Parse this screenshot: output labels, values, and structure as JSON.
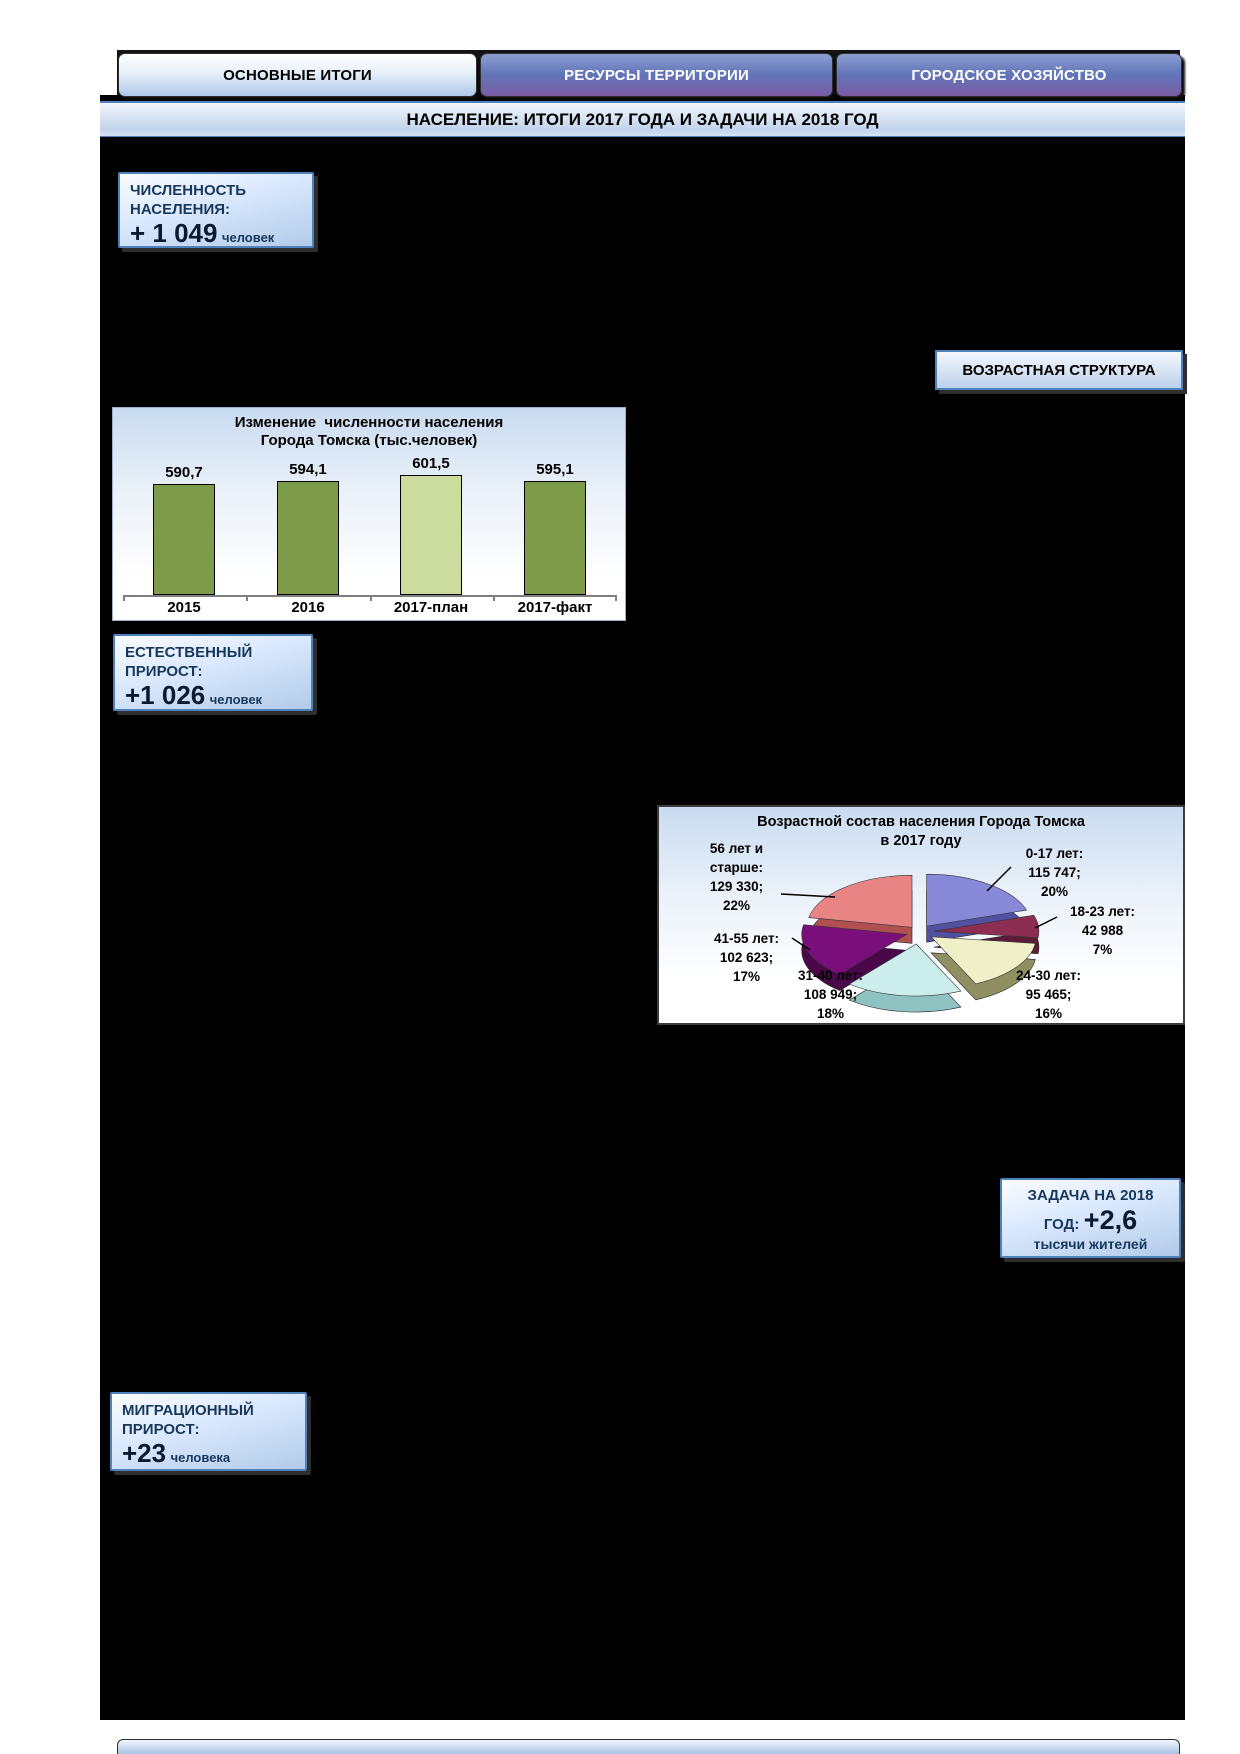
{
  "tabs": [
    {
      "label": "ОСНОВНЫЕ ИТОГИ",
      "active": true
    },
    {
      "label": "РЕСУРСЫ ТЕРРИТОРИИ",
      "active": false
    },
    {
      "label": "ГОРОДСКОЕ ХОЗЯЙСТВО",
      "active": false
    }
  ],
  "page_title": "НАСЕЛЕНИЕ: ИТОГИ 2017 ГОДА И ЗАДАЧИ НА 2018 ГОД",
  "section_label": "ВОЗРАСТНАЯ СТРУКТУРА",
  "callouts": {
    "population": {
      "heading": "ЧИСЛЕННОСТЬ НАСЕЛЕНИЯ:",
      "value": "+ 1 049",
      "unit": "человек"
    },
    "natural_growth": {
      "heading": "ЕСТЕСТВЕННЫЙ ПРИРОСТ:",
      "value": "+1 026",
      "unit": "человек"
    },
    "migration_growth": {
      "heading": "МИГРАЦИОННЫЙ ПРИРОСТ:",
      "value": "+23",
      "unit": "человека"
    },
    "task_2018": {
      "line1": "ЗАДАЧА НА 2018",
      "line2_prefix": "ГОД:",
      "line2_value": "+2,6",
      "line3": "тысячи жителей"
    }
  },
  "chart_data": [
    {
      "type": "bar",
      "title_line1": "Изменение  численности населения",
      "title_line2": "Города Томска (тыс.человек)",
      "categories": [
        "2015",
        "2016",
        "2017-план",
        "2017-факт"
      ],
      "values": [
        590.7,
        594.1,
        601.5,
        595.1
      ],
      "value_labels": [
        "590,7",
        "594,1",
        "601,5",
        "595,1"
      ],
      "bar_colors": [
        "#7E9B49",
        "#7E9B49",
        "#CBDC9E",
        "#7E9B49"
      ],
      "ylim": [
        460,
        610
      ],
      "grid": false,
      "legend": false
    },
    {
      "type": "pie",
      "title_line1": "Возрастной состав населения Города Томска",
      "title_line2": "в 2017 году",
      "start_angle_deg": -90,
      "direction": "clockwise",
      "slices": [
        {
          "label": "0-17 лет",
          "value": 115747,
          "pct": 20,
          "label_lines": [
            "0-17 лет:",
            "115 747;",
            "20%"
          ],
          "color": "#8888D8",
          "side_color": "#5151A2"
        },
        {
          "label": "18-23 лет",
          "value": 42988,
          "pct": 7,
          "label_lines": [
            "18-23 лет:",
            "42 988",
            "7%"
          ],
          "color": "#8C2D52",
          "side_color": "#5C1C36"
        },
        {
          "label": "24-30 лет",
          "value": 95465,
          "pct": 16,
          "label_lines": [
            "24-30 лет:",
            "95 465;",
            "16%"
          ],
          "color": "#EFEFC8",
          "side_color": "#8F8F62"
        },
        {
          "label": "31-40 лет",
          "value": 108949,
          "pct": 18,
          "label_lines": [
            "31-40 лет:",
            "108 949;",
            "18%"
          ],
          "color": "#CBEDEB",
          "side_color": "#8FC3C1"
        },
        {
          "label": "41-55 лет",
          "value": 102623,
          "pct": 17,
          "label_lines": [
            "41-55 лет:",
            "102 623;",
            "17%"
          ],
          "color": "#7A0E7A",
          "side_color": "#4A084A"
        },
        {
          "label": "56 лет и старше",
          "value": 129330,
          "pct": 22,
          "label_lines": [
            "56 лет и",
            "старше:",
            "129 330;",
            "22%"
          ],
          "color": "#E88484",
          "side_color": "#B05050"
        }
      ]
    }
  ]
}
